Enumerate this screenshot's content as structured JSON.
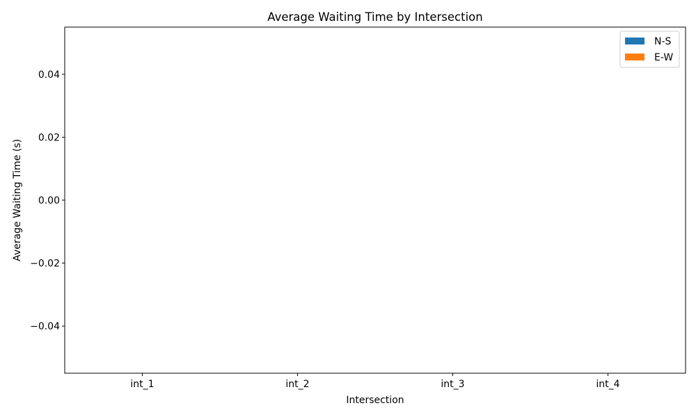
{
  "chart_data": {
    "type": "bar",
    "title": "Average Waiting Time by Intersection",
    "xlabel": "Intersection",
    "ylabel": "Average Waiting Time (s)",
    "categories": [
      "int_1",
      "int_2",
      "int_3",
      "int_4"
    ],
    "series": [
      {
        "name": "N-S",
        "color": "#1f77b4",
        "values": [
          0,
          0,
          0,
          0
        ]
      },
      {
        "name": "E-W",
        "color": "#ff7f0e",
        "values": [
          0,
          0,
          0,
          0
        ]
      }
    ],
    "ylim": [
      -0.055,
      0.055
    ],
    "yticks": [
      -0.04,
      -0.02,
      0.0,
      0.02,
      0.04
    ],
    "ytick_labels": [
      "−0.04",
      "−0.02",
      "0.00",
      "0.02",
      "0.04"
    ],
    "grid": false,
    "legend_position": "top-right"
  }
}
